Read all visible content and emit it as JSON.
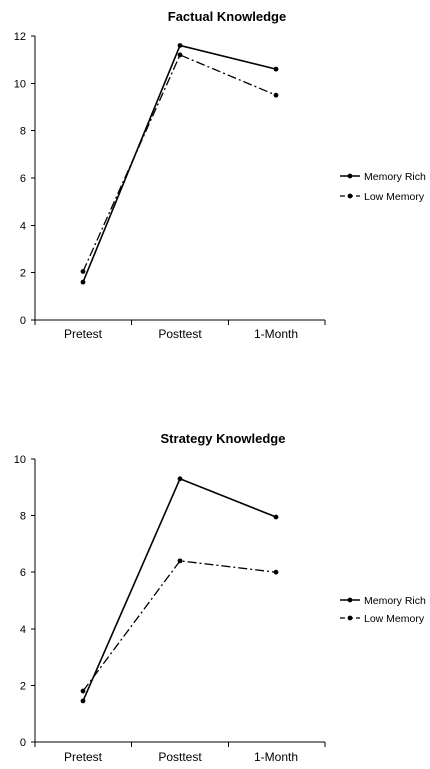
{
  "chart_data": [
    {
      "type": "line",
      "title": "Factual Knowledge",
      "xlabel": "",
      "ylabel": "",
      "categories": [
        "Pretest",
        "Posttest",
        "1-Month"
      ],
      "ylim": [
        0,
        12
      ],
      "yticks": [
        0,
        2,
        4,
        6,
        8,
        10,
        12
      ],
      "grid": false,
      "legend_position": "right",
      "series": [
        {
          "name": "Memory Rich",
          "values": [
            1.6,
            11.6,
            10.6
          ],
          "color": "#000000",
          "style": "solid"
        },
        {
          "name": "Low Memory",
          "values": [
            2.05,
            11.2,
            9.5
          ],
          "color": "#000000",
          "style": "dashdot"
        }
      ]
    },
    {
      "type": "line",
      "title": "Strategy Knowledge",
      "xlabel": "",
      "ylabel": "",
      "categories": [
        "Pretest",
        "Posttest",
        "1-Month"
      ],
      "ylim": [
        0,
        10
      ],
      "yticks": [
        0,
        2,
        4,
        6,
        8,
        10
      ],
      "grid": false,
      "legend_position": "right",
      "series": [
        {
          "name": "Memory Rich",
          "values": [
            1.45,
            9.3,
            7.95
          ],
          "color": "#000000",
          "style": "solid"
        },
        {
          "name": "Low Memory",
          "values": [
            1.8,
            6.4,
            6.0
          ],
          "color": "#000000",
          "style": "dashdot"
        }
      ]
    }
  ]
}
